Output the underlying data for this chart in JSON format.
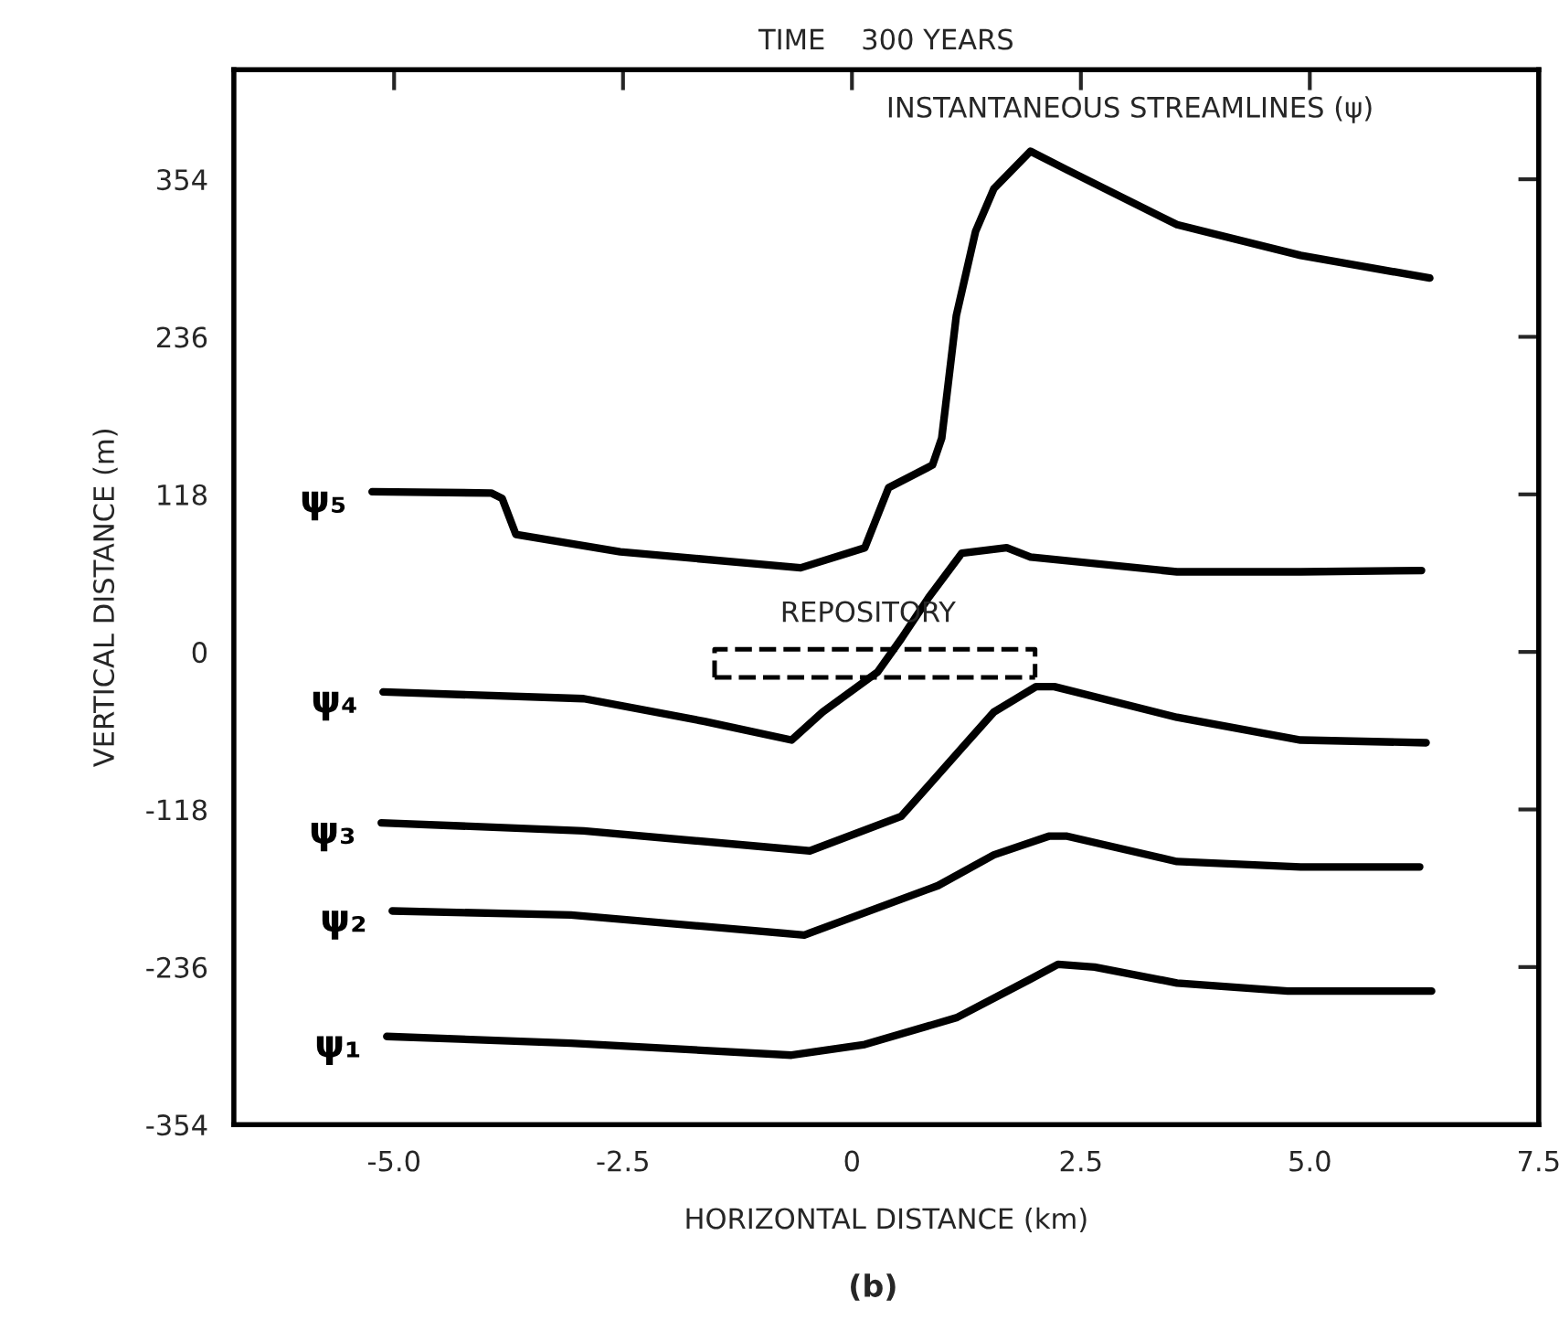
{
  "chart_data": {
    "type": "line",
    "title": "TIME    300 YEARS",
    "xlabel": "HORIZONTAL DISTANCE (km)",
    "ylabel": "VERTICAL DISTANCE (m)",
    "annotations": [
      "INSTANTANEOUS STREAMLINES (ψ)",
      "(b)",
      "REPOSITORY"
    ],
    "xlim": [
      -6.75,
      7.5
    ],
    "ylim": [
      -354,
      436
    ],
    "xticks": [
      {
        "value": -5,
        "label": "-5.0"
      },
      {
        "value": -2.5,
        "label": "-2.5"
      },
      0,
      {
        "value": 2.5,
        "label": "2.5"
      },
      {
        "value": 5,
        "label": "5.0"
      },
      7.5
    ],
    "yticks": [
      -354,
      -236,
      -118,
      0,
      118,
      236,
      354
    ],
    "grid": false,
    "legend": false,
    "series": [
      {
        "name": "ψ₁",
        "color": "#000000",
        "x": [
          -5.08,
          -3.07,
          -0.66,
          0.14,
          1.14,
          1.95,
          2.25,
          2.65,
          3.55,
          4.76,
          6.33
        ],
        "values": [
          -288,
          -293,
          -302,
          -294,
          -274,
          -245,
          -234,
          -236,
          -248,
          -254,
          -254
        ]
      },
      {
        "name": "ψ₂",
        "color": "#000000",
        "x": [
          -5.02,
          -3.07,
          -0.52,
          0.94,
          1.55,
          2.15,
          2.35,
          3.55,
          4.9,
          6.2
        ],
        "values": [
          -194,
          -197,
          -212,
          -175,
          -152,
          -138,
          -138,
          -157,
          -161,
          -161
        ]
      },
      {
        "name": "ψ₃",
        "color": "#000000",
        "x": [
          -5.14,
          -2.93,
          -0.46,
          0.54,
          1.2,
          1.55,
          2.01,
          2.21,
          3.55,
          4.9,
          6.27
        ],
        "values": [
          -128,
          -134,
          -149,
          -123,
          -72,
          -45,
          -26,
          -26,
          -49,
          -66,
          -68
        ]
      },
      {
        "name": "ψ₄",
        "color": "#000000",
        "x": [
          -5.12,
          -2.93,
          -1.61,
          -0.66,
          -0.32,
          0.28,
          0.54,
          0.84,
          1.2,
          1.69,
          1.95,
          3.55,
          4.9,
          6.22
        ],
        "values": [
          -30,
          -35,
          -52,
          -66,
          -45,
          -15,
          10,
          41,
          74,
          78,
          71,
          60,
          60,
          61
        ]
      },
      {
        "name": "ψ₅",
        "color": "#000000",
        "x": [
          -5.24,
          -3.94,
          -3.82,
          -3.67,
          -2.53,
          -0.56,
          0.14,
          0.4,
          0.88,
          0.98,
          1.14,
          1.35,
          1.55,
          1.95,
          2.35,
          3.55,
          4.9,
          6.31
        ],
        "values": [
          120,
          119,
          115,
          88,
          75,
          63,
          78,
          123,
          140,
          160,
          252,
          315,
          347,
          375,
          361,
          320,
          297,
          280
        ]
      },
      {
        "color": "#000000",
        "line_style": "dashed",
        "x": [
          -1.5,
          -1.5,
          2.0,
          2.0
        ],
        "values": [
          -19,
          2,
          2,
          -19
        ]
      },
      {
        "color": "#000000",
        "line_style": "dashed",
        "x": [
          -1.5,
          2.0
        ],
        "values": [
          -19,
          -19
        ]
      }
    ]
  }
}
